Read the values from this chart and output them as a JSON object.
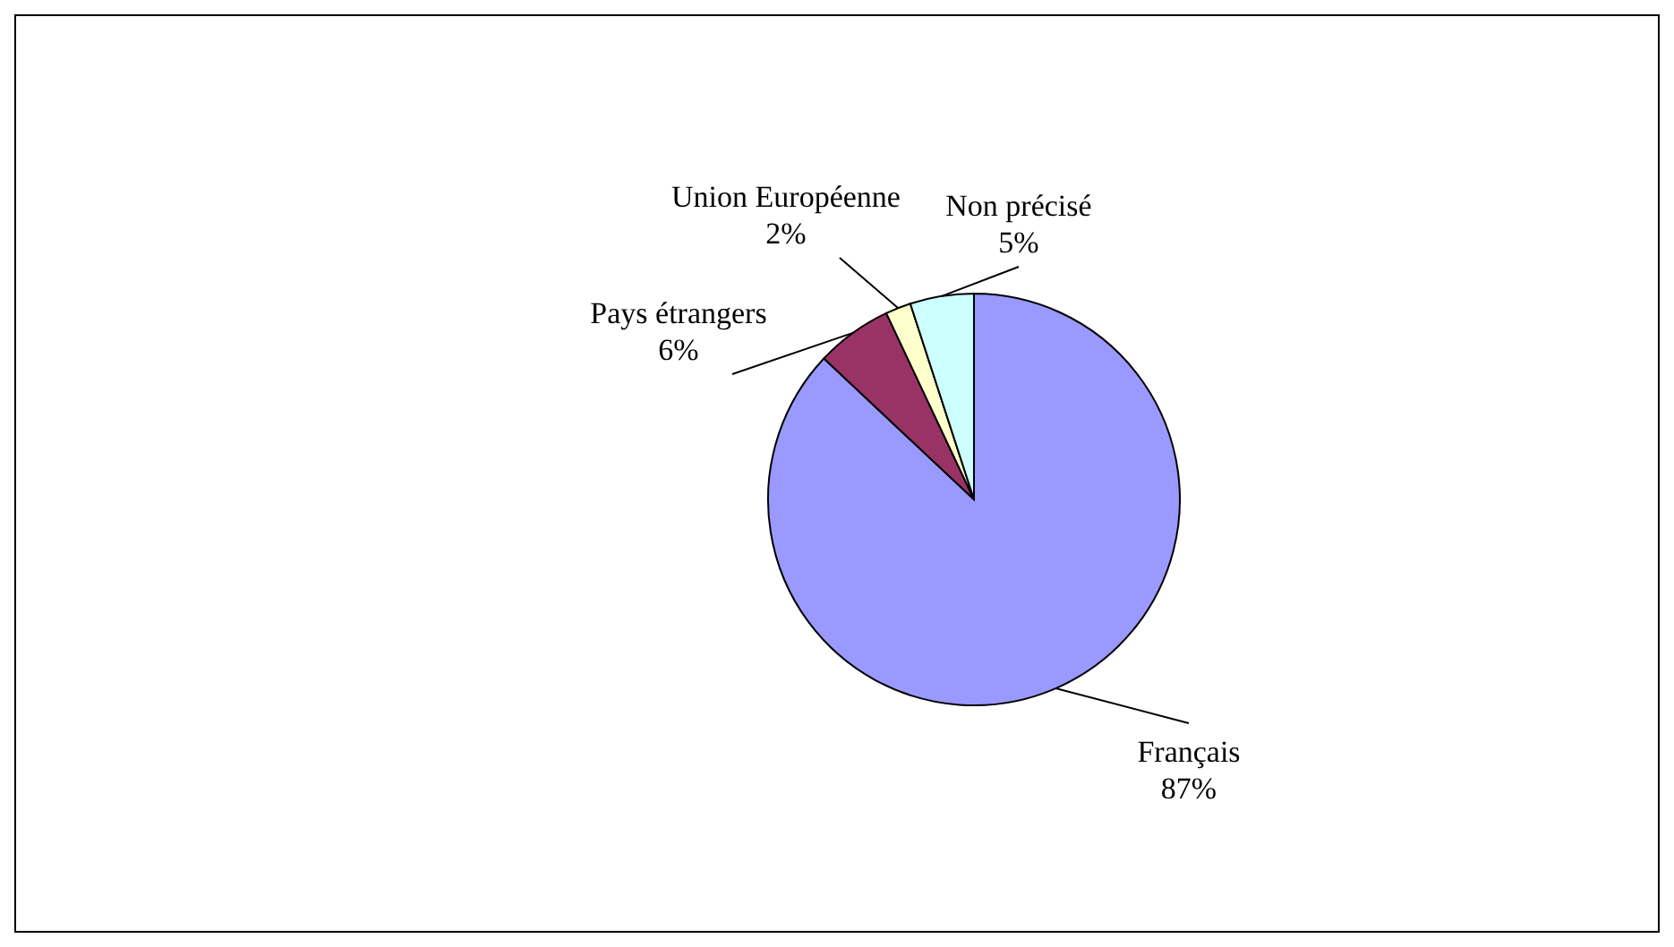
{
  "chart_data": {
    "type": "pie",
    "categories": [
      "Français",
      "Pays étrangers",
      "Union Européenne",
      "Non précisé"
    ],
    "values": [
      87,
      6,
      2,
      5
    ],
    "value_labels": [
      "87%",
      "6%",
      "2%",
      "5%"
    ],
    "colors": [
      "#9999ff",
      "#993366",
      "#ffffcc",
      "#ccffff"
    ],
    "legend": false
  }
}
